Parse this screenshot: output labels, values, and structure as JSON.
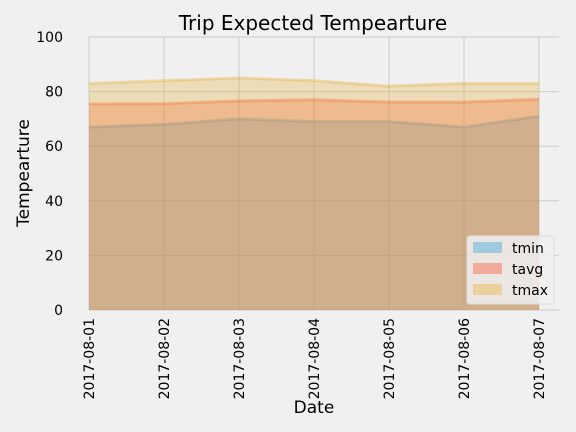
{
  "chart_data": {
    "type": "area",
    "title": "Trip Expected Tempearture",
    "xlabel": "Date",
    "ylabel": "Tempearture",
    "x": [
      "2017-08-01",
      "2017-08-02",
      "2017-08-03",
      "2017-08-04",
      "2017-08-05",
      "2017-08-06",
      "2017-08-07"
    ],
    "ylim": [
      0,
      100
    ],
    "yticks": [
      0,
      20,
      40,
      60,
      80,
      100
    ],
    "stacked": false,
    "grid": true,
    "legend_position": "lower-right",
    "series": [
      {
        "name": "tmin",
        "color": "#30a2da",
        "values": [
          67.0,
          68.0,
          70.0,
          69.0,
          69.0,
          67.0,
          71.0
        ]
      },
      {
        "name": "tavg",
        "color": "#fc4f30",
        "values": [
          75.5,
          75.6,
          76.6,
          77.0,
          76.2,
          76.2,
          77.2
        ]
      },
      {
        "name": "tmax",
        "color": "#e5ae38",
        "values": [
          83.0,
          84.0,
          85.0,
          84.0,
          82.0,
          83.0,
          83.0
        ]
      }
    ]
  }
}
